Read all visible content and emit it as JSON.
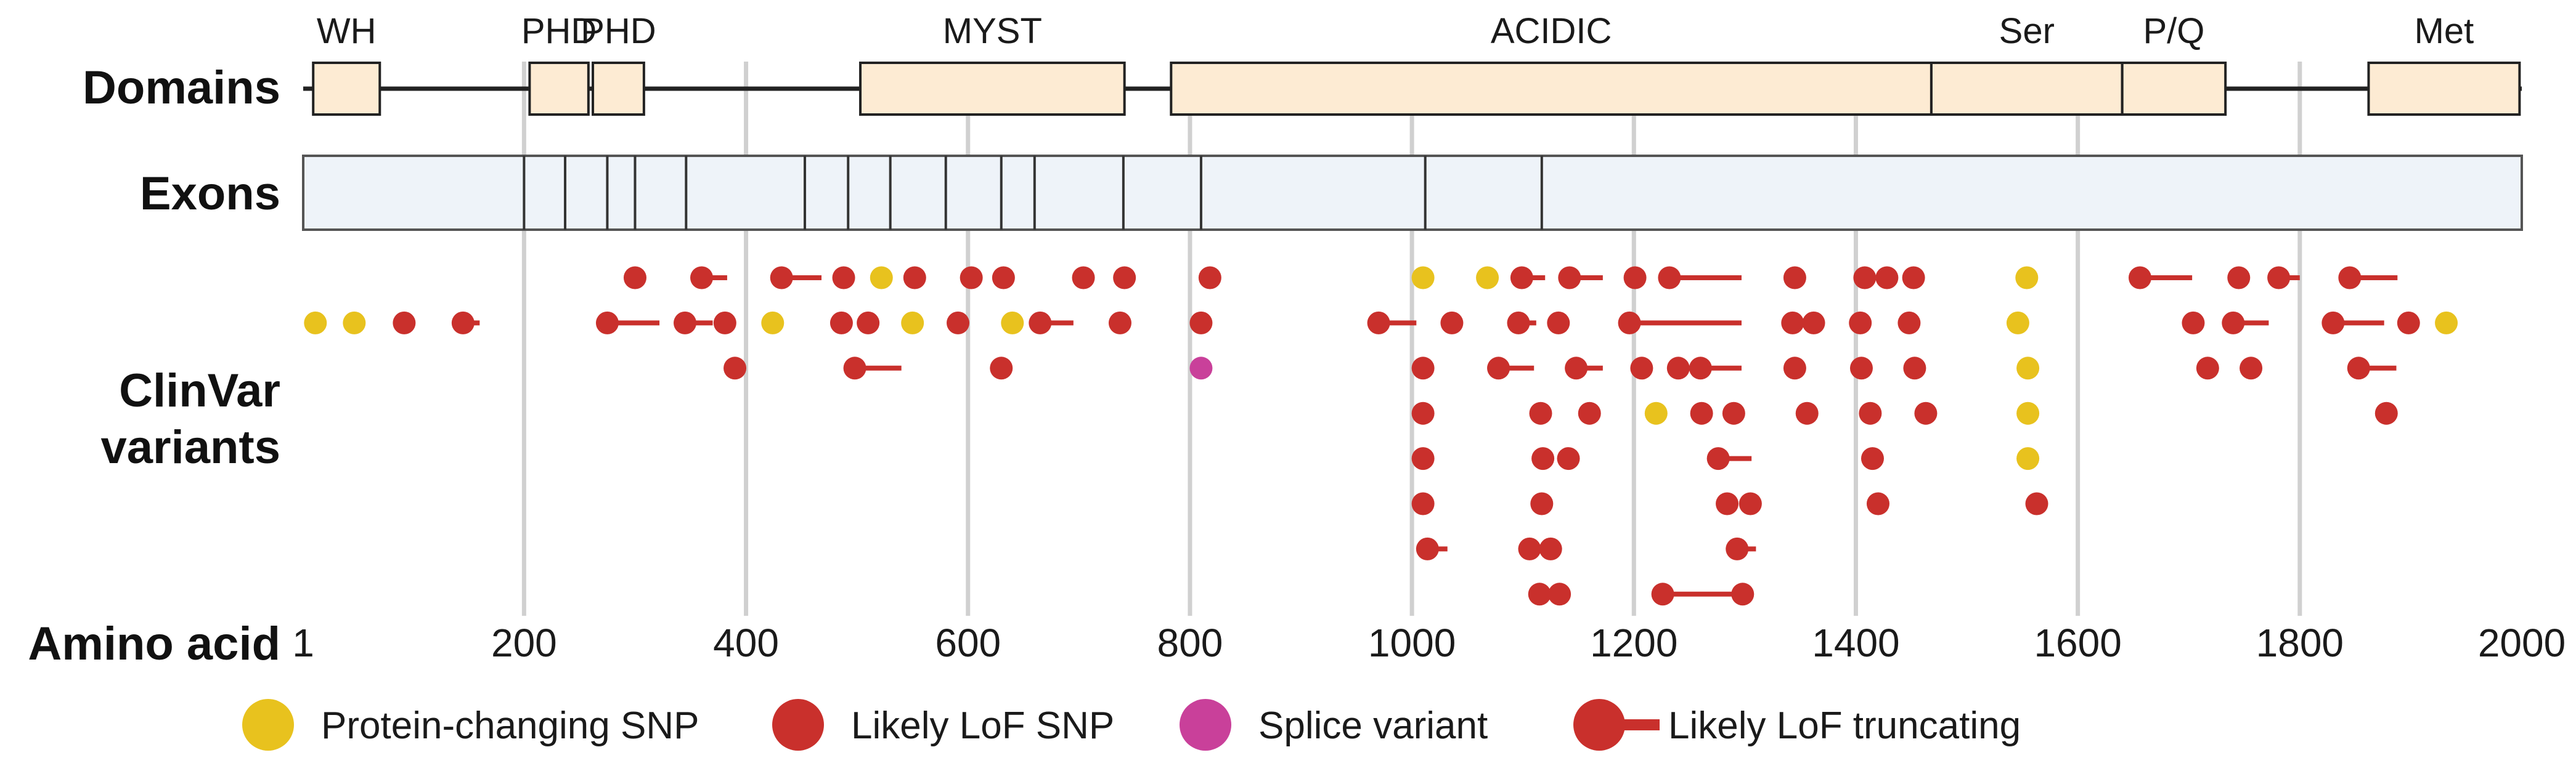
{
  "chart_data": {
    "type": "scatter",
    "title": "",
    "xlabel": "Amino acid",
    "xlim": [
      1,
      2000
    ],
    "x_ticks": [
      1,
      200,
      400,
      600,
      800,
      1000,
      1200,
      1400,
      1600,
      1800,
      2000
    ],
    "x_tick_labels": [
      "1",
      "200",
      "400",
      "600",
      "800",
      "1000",
      "1200",
      "1400",
      "1600",
      "1800",
      "2000"
    ],
    "row_labels": {
      "domains": "Domains",
      "exons": "Exons",
      "variants_line1": "ClinVar",
      "variants_line2": "variants"
    },
    "protein_length": 2000,
    "domains": [
      {
        "name": "WH",
        "start": 10,
        "end": 70
      },
      {
        "name": "PHD",
        "start": 205,
        "end": 258
      },
      {
        "name": "PHD",
        "start": 262,
        "end": 308
      },
      {
        "name": "MYST",
        "start": 503,
        "end": 741
      },
      {
        "name": "ACIDIC",
        "start": 783,
        "end": 1468
      },
      {
        "name": "Ser",
        "start": 1468,
        "end": 1640
      },
      {
        "name": "P/Q",
        "start": 1640,
        "end": 1733
      },
      {
        "name": "Met",
        "start": 1862,
        "end": 1998
      }
    ],
    "exon_boundaries": [
      200,
      237,
      275,
      300,
      346,
      453,
      492,
      530,
      580,
      630,
      660,
      740,
      810,
      1012,
      1117
    ],
    "colors": {
      "protein_changing_snp": "#e8c21e",
      "likely_lof_snp": "#c9302c",
      "splice_variant": "#c9409a",
      "likely_lof_truncating": "#c9302c",
      "domain_fill": "#fdebd3",
      "exon_fill": "#eef3f9",
      "grid": "#d0d0d0"
    },
    "variant_types": [
      "protein_changing_snp",
      "likely_lof_snp",
      "splice_variant",
      "likely_lof_truncating"
    ],
    "legend": [
      {
        "type": "protein_changing_snp",
        "label": "Protein-changing SNP"
      },
      {
        "type": "likely_lof_snp",
        "label": "Likely LoF SNP"
      },
      {
        "type": "splice_variant",
        "label": "Splice variant"
      },
      {
        "type": "likely_lof_truncating",
        "label": "Likely LoF truncating"
      }
    ],
    "variants": [
      {
        "pos": 300,
        "row": 1,
        "type": "likely_lof_snp"
      },
      {
        "pos": 360,
        "row": 1,
        "type": "likely_lof_truncating",
        "end": 383
      },
      {
        "pos": 432,
        "row": 1,
        "type": "likely_lof_truncating",
        "end": 468
      },
      {
        "pos": 488,
        "row": 1,
        "type": "likely_lof_snp"
      },
      {
        "pos": 522,
        "row": 1,
        "type": "protein_changing_snp"
      },
      {
        "pos": 552,
        "row": 1,
        "type": "likely_lof_snp"
      },
      {
        "pos": 603,
        "row": 1,
        "type": "likely_lof_snp"
      },
      {
        "pos": 632,
        "row": 1,
        "type": "likely_lof_snp"
      },
      {
        "pos": 704,
        "row": 1,
        "type": "likely_lof_snp"
      },
      {
        "pos": 741,
        "row": 1,
        "type": "likely_lof_snp"
      },
      {
        "pos": 818,
        "row": 1,
        "type": "likely_lof_snp"
      },
      {
        "pos": 1010,
        "row": 1,
        "type": "protein_changing_snp"
      },
      {
        "pos": 1068,
        "row": 1,
        "type": "protein_changing_snp"
      },
      {
        "pos": 1099,
        "row": 1,
        "type": "likely_lof_truncating",
        "end": 1120
      },
      {
        "pos": 1142,
        "row": 1,
        "type": "likely_lof_truncating",
        "end": 1172
      },
      {
        "pos": 1201,
        "row": 1,
        "type": "likely_lof_snp"
      },
      {
        "pos": 1232,
        "row": 1,
        "type": "likely_lof_truncating",
        "end": 1297
      },
      {
        "pos": 1345,
        "row": 1,
        "type": "likely_lof_snp"
      },
      {
        "pos": 1408,
        "row": 1,
        "type": "likely_lof_snp"
      },
      {
        "pos": 1428,
        "row": 1,
        "type": "likely_lof_snp"
      },
      {
        "pos": 1452,
        "row": 1,
        "type": "likely_lof_snp"
      },
      {
        "pos": 1554,
        "row": 1,
        "type": "protein_changing_snp"
      },
      {
        "pos": 1656,
        "row": 1,
        "type": "likely_lof_truncating",
        "end": 1703
      },
      {
        "pos": 1745,
        "row": 1,
        "type": "likely_lof_snp"
      },
      {
        "pos": 1781,
        "row": 1,
        "type": "likely_lof_truncating",
        "end": 1800
      },
      {
        "pos": 1845,
        "row": 1,
        "type": "likely_lof_truncating",
        "end": 1888
      },
      {
        "pos": 12,
        "row": 2,
        "type": "protein_changing_snp"
      },
      {
        "pos": 47,
        "row": 2,
        "type": "protein_changing_snp"
      },
      {
        "pos": 92,
        "row": 2,
        "type": "likely_lof_snp"
      },
      {
        "pos": 145,
        "row": 2,
        "type": "likely_lof_truncating",
        "end": 160
      },
      {
        "pos": 275,
        "row": 2,
        "type": "likely_lof_truncating",
        "end": 322
      },
      {
        "pos": 345,
        "row": 2,
        "type": "likely_lof_truncating",
        "end": 370
      },
      {
        "pos": 381,
        "row": 2,
        "type": "likely_lof_snp"
      },
      {
        "pos": 424,
        "row": 2,
        "type": "protein_changing_snp"
      },
      {
        "pos": 486,
        "row": 2,
        "type": "likely_lof_snp"
      },
      {
        "pos": 510,
        "row": 2,
        "type": "likely_lof_snp"
      },
      {
        "pos": 550,
        "row": 2,
        "type": "protein_changing_snp"
      },
      {
        "pos": 591,
        "row": 2,
        "type": "likely_lof_snp"
      },
      {
        "pos": 640,
        "row": 2,
        "type": "protein_changing_snp"
      },
      {
        "pos": 665,
        "row": 2,
        "type": "likely_lof_truncating",
        "end": 695
      },
      {
        "pos": 737,
        "row": 2,
        "type": "likely_lof_snp"
      },
      {
        "pos": 810,
        "row": 2,
        "type": "likely_lof_snp"
      },
      {
        "pos": 970,
        "row": 2,
        "type": "likely_lof_truncating",
        "end": 1004
      },
      {
        "pos": 1036,
        "row": 2,
        "type": "likely_lof_snp"
      },
      {
        "pos": 1096,
        "row": 2,
        "type": "likely_lof_truncating",
        "end": 1112
      },
      {
        "pos": 1132,
        "row": 2,
        "type": "likely_lof_snp"
      },
      {
        "pos": 1196,
        "row": 2,
        "type": "likely_lof_truncating",
        "end": 1297
      },
      {
        "pos": 1343,
        "row": 2,
        "type": "likely_lof_snp"
      },
      {
        "pos": 1362,
        "row": 2,
        "type": "likely_lof_snp"
      },
      {
        "pos": 1404,
        "row": 2,
        "type": "likely_lof_snp"
      },
      {
        "pos": 1448,
        "row": 2,
        "type": "likely_lof_snp"
      },
      {
        "pos": 1546,
        "row": 2,
        "type": "protein_changing_snp"
      },
      {
        "pos": 1704,
        "row": 2,
        "type": "likely_lof_snp"
      },
      {
        "pos": 1740,
        "row": 2,
        "type": "likely_lof_truncating",
        "end": 1772
      },
      {
        "pos": 1830,
        "row": 2,
        "type": "likely_lof_truncating",
        "end": 1876
      },
      {
        "pos": 1898,
        "row": 2,
        "type": "likely_lof_snp"
      },
      {
        "pos": 1932,
        "row": 2,
        "type": "protein_changing_snp"
      },
      {
        "pos": 390,
        "row": 3,
        "type": "likely_lof_snp"
      },
      {
        "pos": 498,
        "row": 3,
        "type": "likely_lof_truncating",
        "end": 540
      },
      {
        "pos": 630,
        "row": 3,
        "type": "likely_lof_snp"
      },
      {
        "pos": 810,
        "row": 3,
        "type": "splice_variant"
      },
      {
        "pos": 1010,
        "row": 3,
        "type": "likely_lof_snp"
      },
      {
        "pos": 1078,
        "row": 3,
        "type": "likely_lof_truncating",
        "end": 1110
      },
      {
        "pos": 1148,
        "row": 3,
        "type": "likely_lof_truncating",
        "end": 1172
      },
      {
        "pos": 1207,
        "row": 3,
        "type": "likely_lof_snp"
      },
      {
        "pos": 1240,
        "row": 3,
        "type": "likely_lof_snp"
      },
      {
        "pos": 1260,
        "row": 3,
        "type": "likely_lof_truncating",
        "end": 1297
      },
      {
        "pos": 1345,
        "row": 3,
        "type": "likely_lof_snp"
      },
      {
        "pos": 1405,
        "row": 3,
        "type": "likely_lof_snp"
      },
      {
        "pos": 1453,
        "row": 3,
        "type": "likely_lof_snp"
      },
      {
        "pos": 1555,
        "row": 3,
        "type": "protein_changing_snp"
      },
      {
        "pos": 1717,
        "row": 3,
        "type": "likely_lof_snp"
      },
      {
        "pos": 1756,
        "row": 3,
        "type": "likely_lof_snp"
      },
      {
        "pos": 1853,
        "row": 3,
        "type": "likely_lof_truncating",
        "end": 1887
      },
      {
        "pos": 1010,
        "row": 4,
        "type": "likely_lof_snp"
      },
      {
        "pos": 1116,
        "row": 4,
        "type": "likely_lof_snp"
      },
      {
        "pos": 1160,
        "row": 4,
        "type": "likely_lof_snp"
      },
      {
        "pos": 1220,
        "row": 4,
        "type": "protein_changing_snp"
      },
      {
        "pos": 1261,
        "row": 4,
        "type": "likely_lof_snp"
      },
      {
        "pos": 1290,
        "row": 4,
        "type": "likely_lof_snp"
      },
      {
        "pos": 1356,
        "row": 4,
        "type": "likely_lof_snp"
      },
      {
        "pos": 1413,
        "row": 4,
        "type": "likely_lof_snp"
      },
      {
        "pos": 1463,
        "row": 4,
        "type": "likely_lof_snp"
      },
      {
        "pos": 1555,
        "row": 4,
        "type": "protein_changing_snp"
      },
      {
        "pos": 1878,
        "row": 4,
        "type": "likely_lof_snp"
      },
      {
        "pos": 1010,
        "row": 5,
        "type": "likely_lof_snp"
      },
      {
        "pos": 1118,
        "row": 5,
        "type": "likely_lof_snp"
      },
      {
        "pos": 1141,
        "row": 5,
        "type": "likely_lof_snp"
      },
      {
        "pos": 1276,
        "row": 5,
        "type": "likely_lof_truncating",
        "end": 1306
      },
      {
        "pos": 1415,
        "row": 5,
        "type": "likely_lof_snp"
      },
      {
        "pos": 1555,
        "row": 5,
        "type": "protein_changing_snp"
      },
      {
        "pos": 1010,
        "row": 6,
        "type": "likely_lof_snp"
      },
      {
        "pos": 1117,
        "row": 6,
        "type": "likely_lof_snp"
      },
      {
        "pos": 1284,
        "row": 6,
        "type": "likely_lof_snp"
      },
      {
        "pos": 1305,
        "row": 6,
        "type": "likely_lof_snp"
      },
      {
        "pos": 1420,
        "row": 6,
        "type": "likely_lof_snp"
      },
      {
        "pos": 1563,
        "row": 6,
        "type": "likely_lof_snp"
      },
      {
        "pos": 1014,
        "row": 7,
        "type": "likely_lof_truncating",
        "end": 1032
      },
      {
        "pos": 1106,
        "row": 7,
        "type": "likely_lof_snp"
      },
      {
        "pos": 1125,
        "row": 7,
        "type": "likely_lof_snp"
      },
      {
        "pos": 1293,
        "row": 7,
        "type": "likely_lof_truncating",
        "end": 1310
      },
      {
        "pos": 1115,
        "row": 8,
        "type": "likely_lof_snp"
      },
      {
        "pos": 1133,
        "row": 8,
        "type": "likely_lof_snp"
      },
      {
        "pos": 1226,
        "row": 8,
        "type": "likely_lof_truncating",
        "end": 1297
      },
      {
        "pos": 1298,
        "row": 8,
        "type": "likely_lof_snp"
      }
    ]
  }
}
